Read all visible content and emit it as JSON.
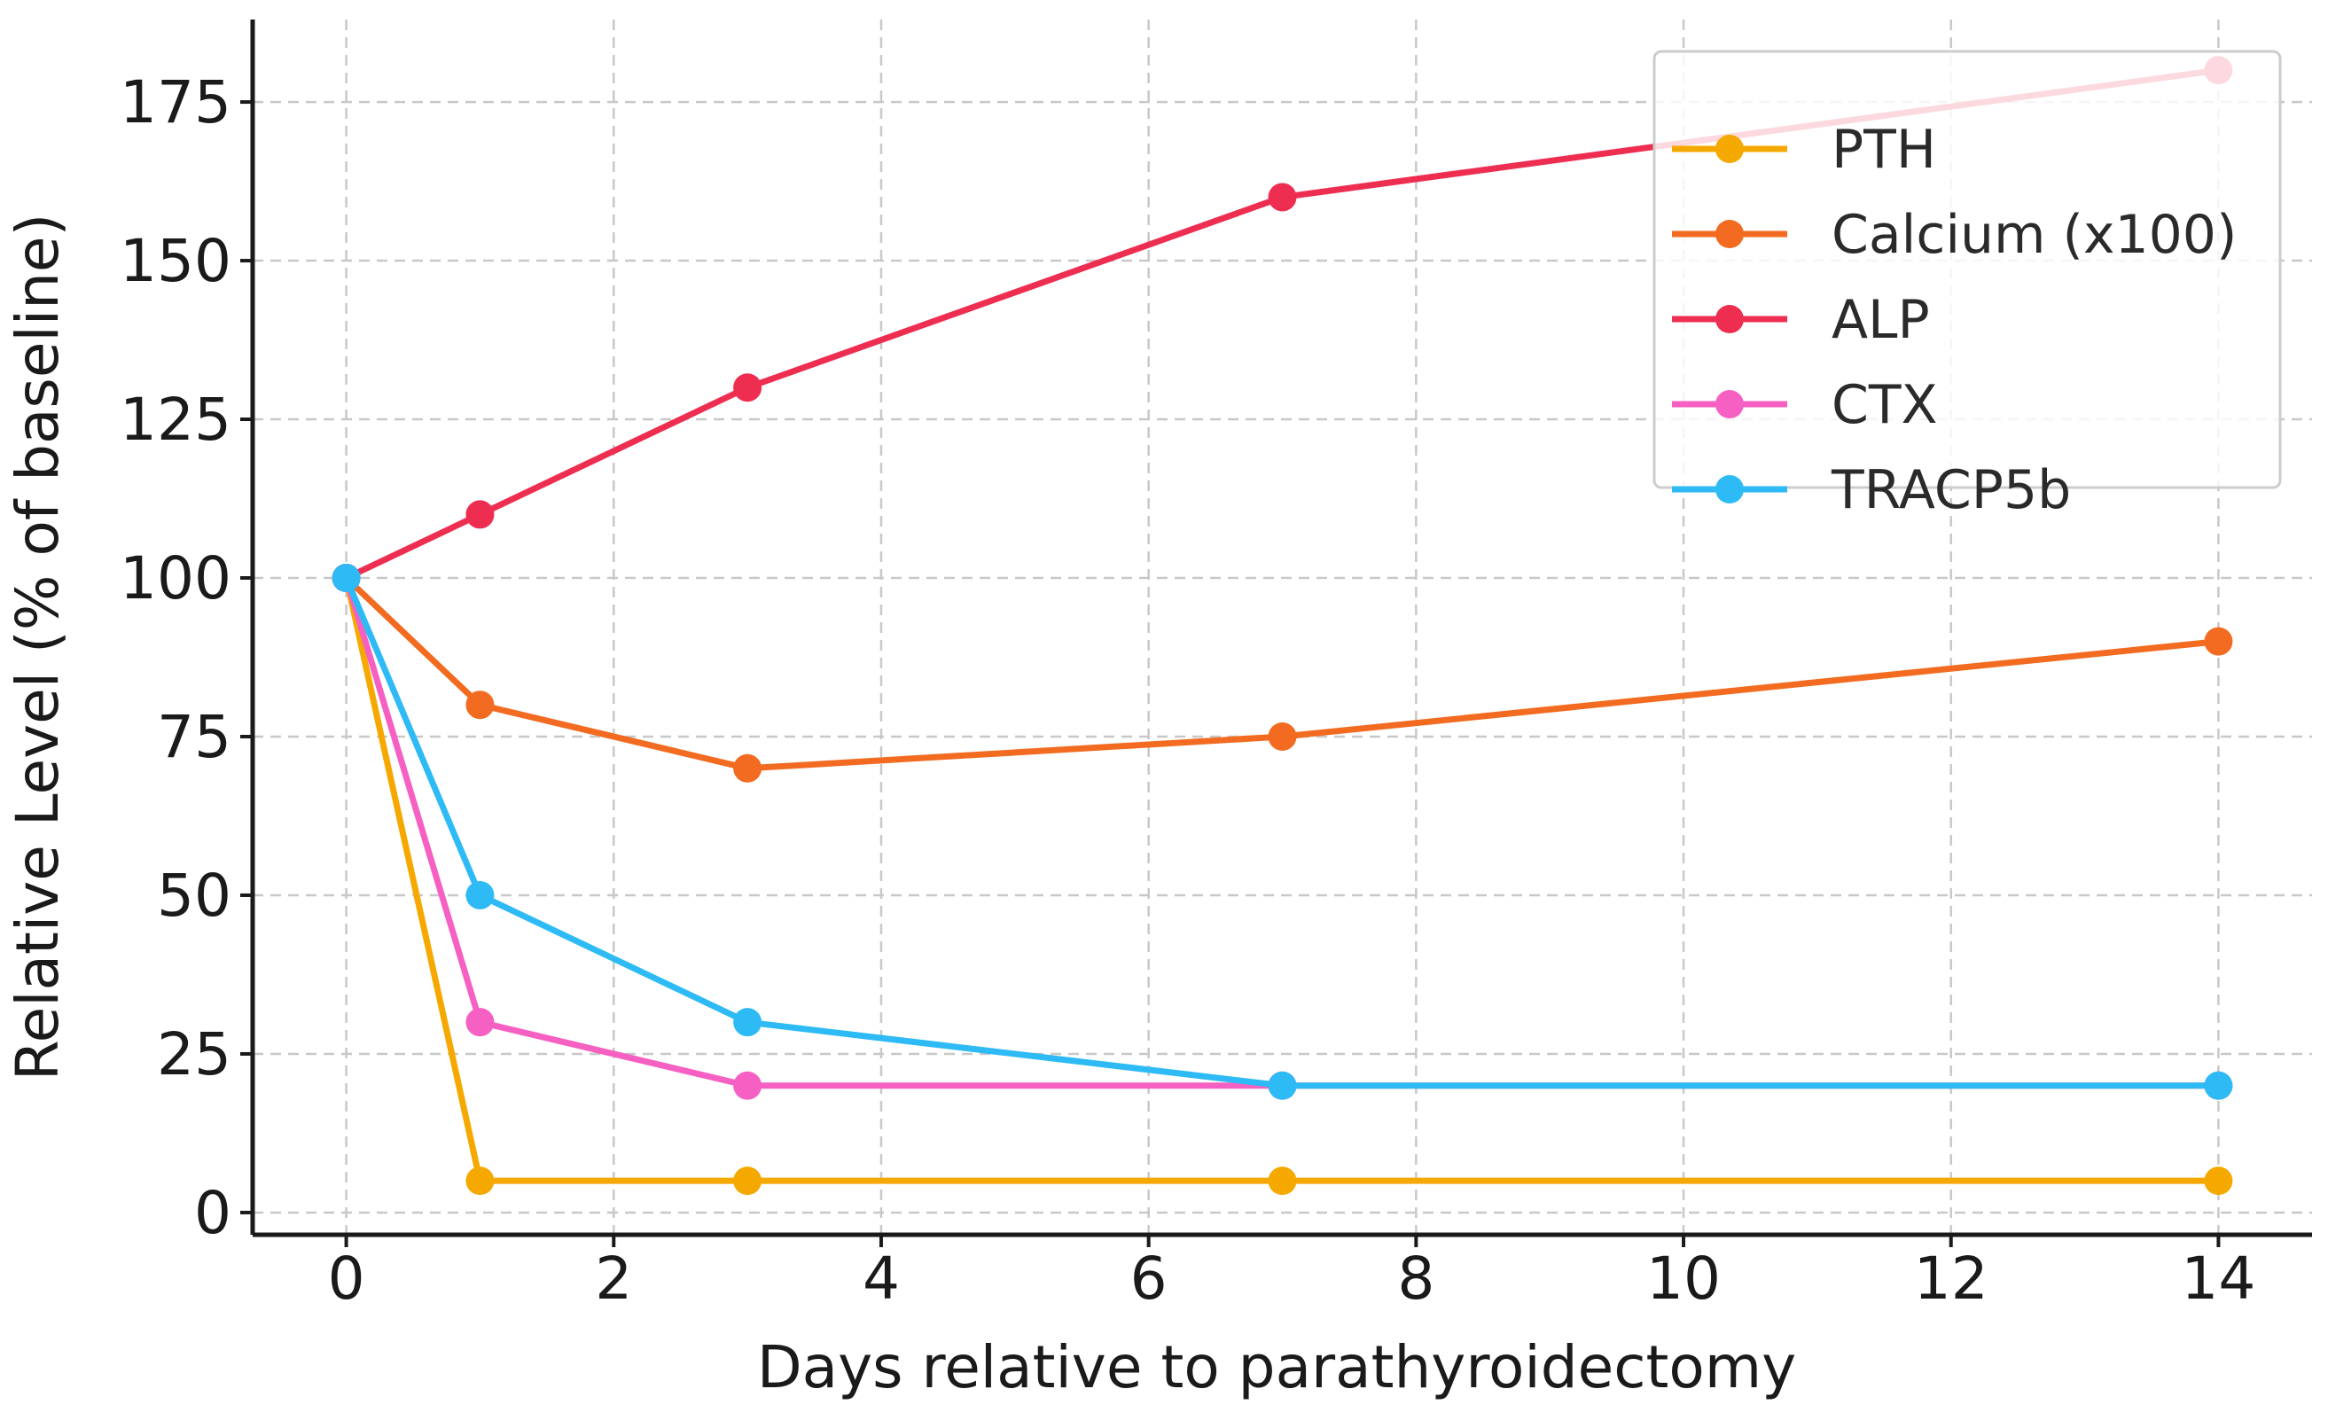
{
  "chart_data": {
    "type": "line",
    "title": "",
    "xlabel": "Days relative to parathyroidectomy",
    "ylabel": "Relative Level (% of baseline)",
    "xlim": [
      -0.7,
      14.7
    ],
    "ylim": [
      -3.5,
      188
    ],
    "x_ticks": [
      0,
      2,
      4,
      6,
      8,
      10,
      12,
      14
    ],
    "y_ticks": [
      0,
      25,
      50,
      75,
      100,
      125,
      150,
      175
    ],
    "x_tick_labels": [
      "0",
      "2",
      "4",
      "6",
      "8",
      "10",
      "12",
      "14"
    ],
    "y_tick_labels": [
      "0",
      "25",
      "50",
      "75",
      "100",
      "125",
      "150",
      "175"
    ],
    "grid": true,
    "legend_position": "top-right",
    "x": [
      0,
      1,
      3,
      7,
      14
    ],
    "series": [
      {
        "name": "PTH",
        "color": "#F5A800",
        "values": [
          100,
          5,
          5,
          5,
          5
        ]
      },
      {
        "name": "Calcium (x100)",
        "color": "#F26B21",
        "values": [
          100,
          80,
          70,
          75,
          90
        ]
      },
      {
        "name": "ALP",
        "color": "#EE2E50",
        "values": [
          100,
          110,
          130,
          160,
          180
        ]
      },
      {
        "name": "CTX",
        "color": "#F560C2",
        "values": [
          100,
          30,
          20,
          20,
          20
        ]
      },
      {
        "name": "TRACP5b",
        "color": "#2EBBF5",
        "values": [
          100,
          50,
          30,
          20,
          20
        ]
      }
    ]
  }
}
